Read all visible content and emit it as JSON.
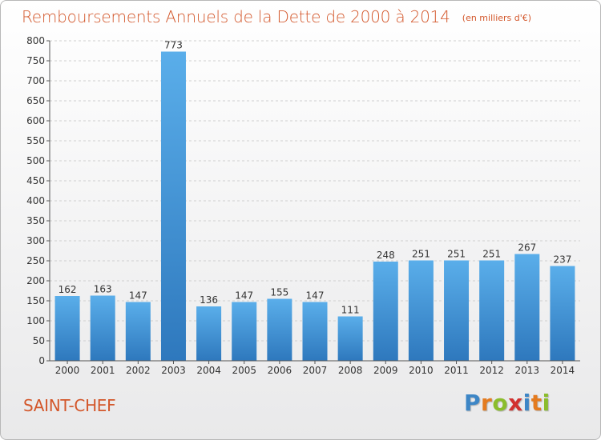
{
  "header": {
    "title": "Remboursements Annuels de la Dette de 2000 à 2014",
    "unit": "(en milliers d'€)"
  },
  "footer": {
    "city": "SAINT-CHEF",
    "logo": {
      "letters": [
        "P",
        "r",
        "o",
        "x",
        "i",
        "t",
        "i"
      ],
      "colors": [
        "#3d86c6",
        "#e47b1f",
        "#8bbd2c",
        "#d2312f",
        "#3d86c6",
        "#e47b1f",
        "#8bbd2c"
      ]
    }
  },
  "colors": {
    "bar_top": "#5aaeea",
    "bar_bottom": "#2e78bd",
    "grid": "#cfcfcf",
    "axis": "#555555"
  },
  "chart_data": {
    "type": "bar",
    "title": "Remboursements Annuels de la Dette de 2000 à 2014",
    "categories": [
      "2000",
      "2001",
      "2002",
      "2003",
      "2004",
      "2005",
      "2006",
      "2007",
      "2008",
      "2009",
      "2010",
      "2011",
      "2012",
      "2013",
      "2014"
    ],
    "values": [
      162,
      163,
      147,
      773,
      136,
      147,
      155,
      147,
      111,
      248,
      251,
      251,
      251,
      267,
      237
    ],
    "ylim": [
      0,
      800
    ],
    "yticks": [
      0,
      50,
      100,
      150,
      200,
      250,
      300,
      350,
      400,
      450,
      500,
      550,
      600,
      650,
      700,
      750,
      800
    ],
    "grid": true,
    "xlabel": "",
    "ylabel": ""
  }
}
